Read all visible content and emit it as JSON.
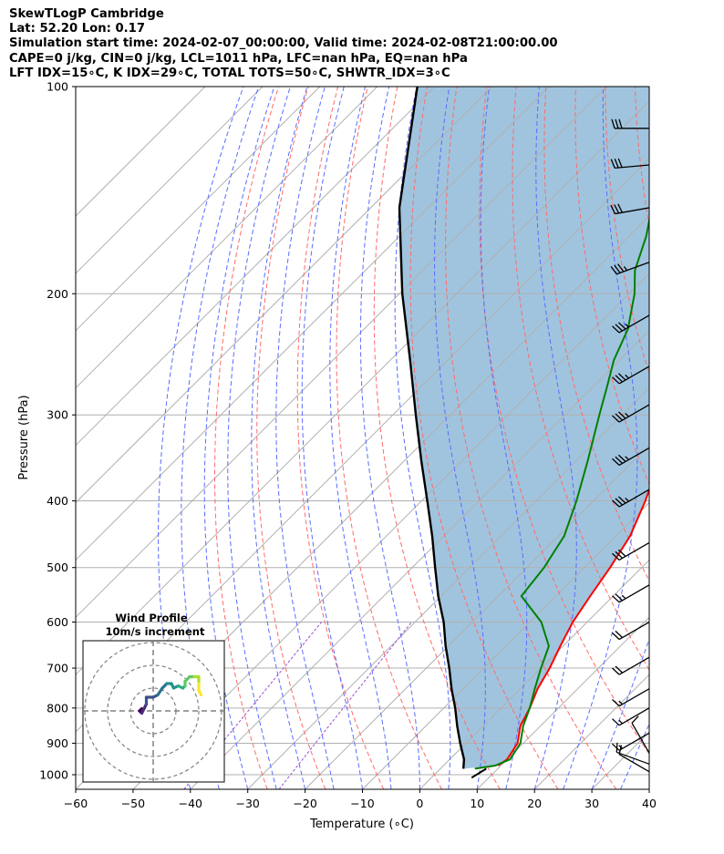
{
  "header": {
    "line1": "SkewTLogP Cambridge",
    "line2": "Lat: 52.20   Lon: 0.17",
    "line3": "Simulation start time: 2024-02-07_00:00:00, Valid time: 2024-02-08T21:00:00.00",
    "line4": "CAPE=0 j/kg, CIN=0 j/kg, LCL=1011 hPa, LFC=nan hPa, EQ=nan hPa",
    "line5": "LFT IDX=15∘C, K IDX=29∘C, TOTAL TOTS=50∘C, SHWTR_IDX=3∘C"
  },
  "colors": {
    "temperature": "#ff0000",
    "dewpoint": "#008000",
    "parcel": "#000000",
    "cape_fill": "#a0c4de",
    "dry_adiabat": "#ff6a6a",
    "moist_adiabat": "#5a6cff",
    "mixing_ratio": "#9b4fd1",
    "isotherm": "#b0b0b0"
  },
  "chart_data": [
    {
      "type": "line",
      "subtype": "skew-t log-p",
      "xlabel": "Pressure (hPa)",
      "x_axis_label": "Temperature (∘C)",
      "ylabel": "Pressure (hPa)",
      "xlim": [
        -60,
        40
      ],
      "ylim": [
        1050,
        100
      ],
      "y_scale": "log",
      "x_ticks": [
        -60,
        -50,
        -40,
        -30,
        -20,
        -10,
        0,
        10,
        20,
        30,
        40
      ],
      "y_ticks": [
        100,
        200,
        300,
        400,
        500,
        600,
        700,
        800,
        900,
        1000
      ],
      "grid": true,
      "series": [
        {
          "key": "temperature",
          "points": [
            [
              9.5,
              970
            ],
            [
              10.0,
              950
            ],
            [
              9.0,
              900
            ],
            [
              6.5,
              850
            ],
            [
              5.0,
              800
            ],
            [
              3.0,
              750
            ],
            [
              1.5,
              700
            ],
            [
              -0.5,
              650
            ],
            [
              -2.5,
              600
            ],
            [
              -4.0,
              550
            ],
            [
              -5.5,
              500
            ],
            [
              -7.5,
              450
            ],
            [
              -11.0,
              400
            ],
            [
              -15.5,
              350
            ],
            [
              -21.0,
              300
            ],
            [
              -27.0,
              260
            ],
            [
              -31.5,
              250
            ],
            [
              -34.0,
              225
            ],
            [
              -38.0,
              200
            ],
            [
              -41.5,
              185
            ],
            [
              -45.0,
              160
            ],
            [
              -49.0,
              145
            ],
            [
              -54.0,
              130
            ],
            [
              -58.0,
              120
            ],
            [
              -61.0,
              110
            ],
            [
              -64.0,
              100
            ]
          ]
        },
        {
          "key": "dewpoint",
          "points": [
            [
              6.0,
              980
            ],
            [
              9.0,
              970
            ],
            [
              10.5,
              950
            ],
            [
              9.5,
              900
            ],
            [
              7.0,
              850
            ],
            [
              5.0,
              800
            ],
            [
              2.5,
              750
            ],
            [
              0.0,
              700
            ],
            [
              -2.5,
              650
            ],
            [
              -8.0,
              600
            ],
            [
              -16.0,
              550
            ],
            [
              -17.0,
              500
            ],
            [
              -19.0,
              450
            ],
            [
              -23.0,
              400
            ],
            [
              -28.0,
              350
            ],
            [
              -34.0,
              300
            ],
            [
              -38.0,
              270
            ],
            [
              -41.0,
              250
            ],
            [
              -44.0,
              225
            ],
            [
              -49.0,
              200
            ],
            [
              -53.0,
              185
            ],
            [
              -57.0,
              165
            ],
            [
              -61.0,
              150
            ],
            [
              -66.0,
              135
            ],
            [
              -72.0,
              115
            ],
            [
              -76.0,
              100
            ]
          ]
        },
        {
          "key": "parcel",
          "points": [
            [
              4.0,
              980
            ],
            [
              2.5,
              950
            ],
            [
              -1.0,
              900
            ],
            [
              -4.5,
              850
            ],
            [
              -8.0,
              800
            ],
            [
              -12.0,
              750
            ],
            [
              -16.0,
              700
            ],
            [
              -20.5,
              650
            ],
            [
              -25.0,
              600
            ],
            [
              -30.5,
              550
            ],
            [
              -36.0,
              500
            ],
            [
              -42.0,
              450
            ],
            [
              -49.0,
              400
            ],
            [
              -57.0,
              350
            ],
            [
              -66.0,
              300
            ],
            [
              -76.5,
              250
            ],
            [
              -89.5,
              200
            ],
            [
              -105.0,
              150
            ],
            [
              -123.0,
              100
            ]
          ]
        }
      ],
      "surface_parcel_marker": {
        "points": [
          [
            8.0,
            980
          ],
          [
            7.0,
            1010
          ]
        ]
      },
      "wind_barbs": [
        {
          "p": 990,
          "speed_kt": 10,
          "dir": 300
        },
        {
          "p": 965,
          "speed_kt": 10,
          "dir": 290
        },
        {
          "p": 930,
          "speed_kt": 10,
          "dir": 330
        },
        {
          "p": 870,
          "speed_kt": 15,
          "dir": 240
        },
        {
          "p": 800,
          "speed_kt": 15,
          "dir": 240
        },
        {
          "p": 750,
          "speed_kt": 15,
          "dir": 240
        },
        {
          "p": 675,
          "speed_kt": 20,
          "dir": 240
        },
        {
          "p": 600,
          "speed_kt": 20,
          "dir": 240
        },
        {
          "p": 530,
          "speed_kt": 25,
          "dir": 240
        },
        {
          "p": 460,
          "speed_kt": 30,
          "dir": 240
        },
        {
          "p": 385,
          "speed_kt": 35,
          "dir": 240
        },
        {
          "p": 335,
          "speed_kt": 35,
          "dir": 240
        },
        {
          "p": 290,
          "speed_kt": 35,
          "dir": 240
        },
        {
          "p": 255,
          "speed_kt": 35,
          "dir": 240
        },
        {
          "p": 215,
          "speed_kt": 35,
          "dir": 240
        },
        {
          "p": 180,
          "speed_kt": 35,
          "dir": 250
        },
        {
          "p": 150,
          "speed_kt": 30,
          "dir": 260
        },
        {
          "p": 130,
          "speed_kt": 30,
          "dir": 265
        },
        {
          "p": 115,
          "speed_kt": 30,
          "dir": 270
        }
      ]
    },
    {
      "type": "line",
      "subtype": "hodograph",
      "title": "Wind Profile",
      "subtitle": "10m/s increment",
      "rings_ms": [
        10,
        20,
        30
      ],
      "points": [
        [
          -5,
          1
        ],
        [
          -6,
          0
        ],
        [
          -5,
          -1
        ],
        [
          -4,
          1
        ],
        [
          -3,
          3
        ],
        [
          -3,
          6
        ],
        [
          0,
          6
        ],
        [
          2,
          7
        ],
        [
          4,
          10
        ],
        [
          6,
          12
        ],
        [
          8,
          12
        ],
        [
          9,
          10
        ],
        [
          11,
          11
        ],
        [
          13,
          10
        ],
        [
          14,
          11
        ],
        [
          14,
          13
        ],
        [
          16,
          15
        ],
        [
          18,
          15
        ],
        [
          20,
          15
        ],
        [
          20,
          12
        ],
        [
          20,
          9
        ],
        [
          21,
          7
        ]
      ]
    }
  ]
}
